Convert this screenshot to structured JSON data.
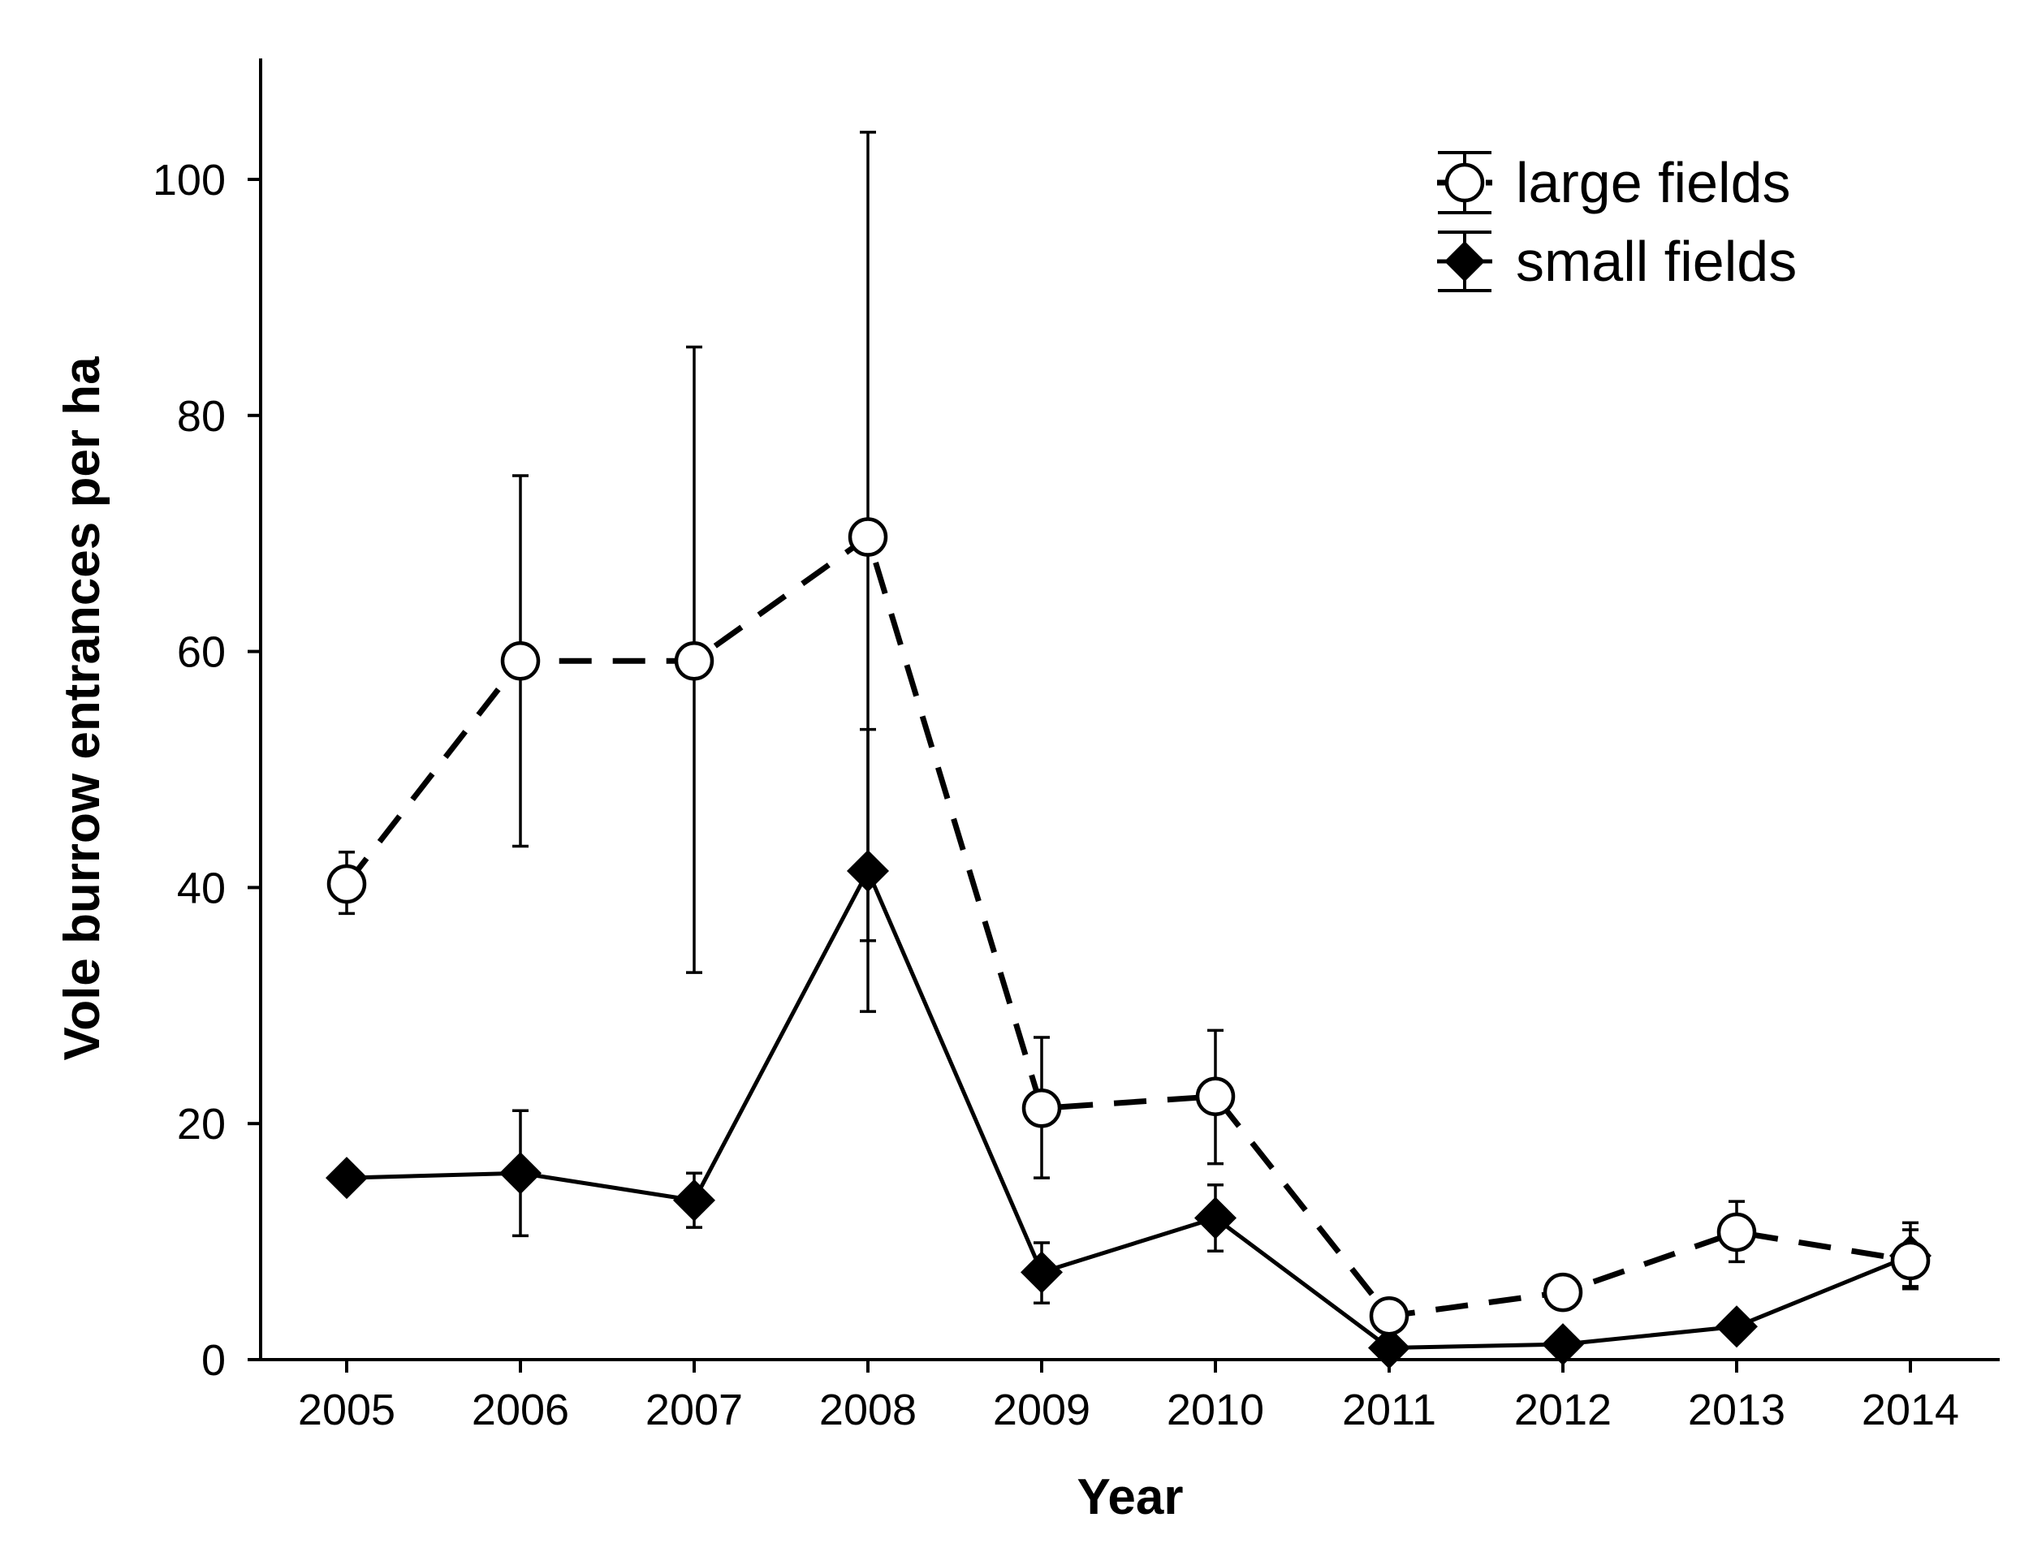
{
  "chart_data": {
    "type": "line",
    "title": "",
    "xlabel": "Year",
    "ylabel": "Vole burrow entrances per ha",
    "categories": [
      "2005",
      "2006",
      "2007",
      "2008",
      "2009",
      "2010",
      "2011",
      "2012",
      "2013",
      "2014"
    ],
    "ylim": [
      0,
      110
    ],
    "yticks": [
      0,
      20,
      40,
      60,
      80,
      100
    ],
    "legend_position": "top-right",
    "series": [
      {
        "name": "large fields",
        "marker": "open-circle",
        "line_style": "dashed",
        "values": [
          40.3,
          59.2,
          59.2,
          69.7,
          21.3,
          22.3,
          3.7,
          5.7,
          10.8,
          8.4
        ],
        "err_upper": [
          43.0,
          74.9,
          85.8,
          104.0,
          27.3,
          27.9,
          4.5,
          7.0,
          13.4,
          11.0
        ],
        "err_lower": [
          37.8,
          43.5,
          32.8,
          35.5,
          15.4,
          16.6,
          2.9,
          4.4,
          8.3,
          6.2
        ]
      },
      {
        "name": "small fields",
        "marker": "filled-diamond",
        "line_style": "solid",
        "values": [
          15.4,
          15.8,
          13.5,
          41.4,
          7.4,
          12.0,
          1.0,
          1.3,
          2.8,
          8.8
        ],
        "err_upper": [
          15.4,
          21.1,
          15.8,
          53.4,
          9.9,
          14.8,
          1.0,
          1.3,
          2.8,
          11.6
        ],
        "err_lower": [
          15.4,
          10.5,
          11.2,
          29.5,
          4.8,
          9.2,
          1.0,
          1.3,
          2.8,
          6.0
        ]
      }
    ]
  }
}
